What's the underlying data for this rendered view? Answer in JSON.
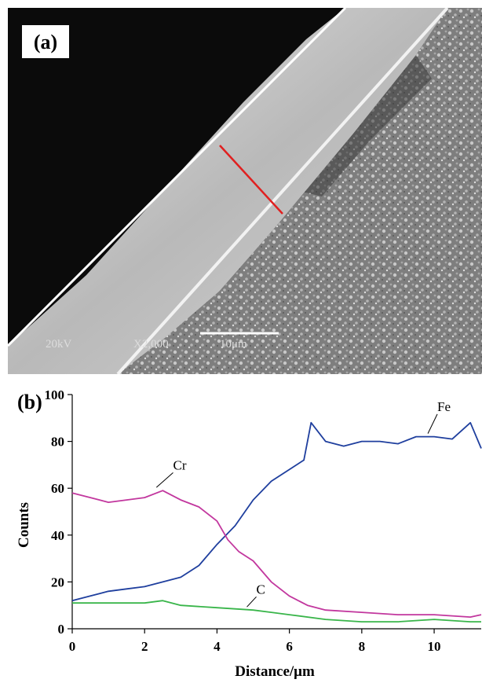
{
  "panel_a": {
    "label": "(a)",
    "sem_labels": {
      "voltage": "20kV",
      "magnification": "X2,000",
      "scale_bar": "10μm"
    }
  },
  "panel_b": {
    "label": "(b)"
  },
  "colors": {
    "Fe": "#1f3f9e",
    "Cr": "#c2379e",
    "C": "#39b54a",
    "profile_line": "#e02020"
  },
  "chart_data": {
    "type": "line",
    "xlabel": "Distance/μm",
    "ylabel": "Counts",
    "xlim": [
      0,
      11.3
    ],
    "ylim": [
      0,
      100
    ],
    "xticks": [
      0,
      2,
      4,
      6,
      8,
      10
    ],
    "yticks": [
      0,
      20,
      40,
      60,
      80,
      100
    ],
    "annotations": [
      {
        "text": "Fe",
        "series": "Fe",
        "x": 10.0,
        "y": 93
      },
      {
        "text": "Cr",
        "series": "Cr",
        "x": 2.7,
        "y": 68
      },
      {
        "text": "C",
        "series": "C",
        "x": 5.0,
        "y": 15
      }
    ],
    "series": [
      {
        "name": "Fe",
        "x": [
          0,
          0.5,
          1.0,
          1.5,
          2.0,
          2.5,
          3.0,
          3.5,
          4.0,
          4.5,
          5.0,
          5.5,
          6.0,
          6.4,
          6.6,
          6.8,
          7.0,
          7.5,
          8.0,
          8.5,
          9.0,
          9.5,
          10.0,
          10.5,
          11.0,
          11.3
        ],
        "y": [
          12,
          14,
          16,
          17,
          18,
          20,
          22,
          27,
          36,
          44,
          55,
          63,
          68,
          72,
          88,
          84,
          80,
          78,
          80,
          80,
          79,
          82,
          82,
          81,
          88,
          77
        ]
      },
      {
        "name": "Cr",
        "x": [
          0,
          0.5,
          1.0,
          1.5,
          2.0,
          2.5,
          3.0,
          3.5,
          4.0,
          4.3,
          4.6,
          5.0,
          5.5,
          6.0,
          6.5,
          7.0,
          8.0,
          9.0,
          10.0,
          11.0,
          11.3
        ],
        "y": [
          58,
          56,
          54,
          55,
          56,
          59,
          55,
          52,
          46,
          38,
          33,
          29,
          20,
          14,
          10,
          8,
          7,
          6,
          6,
          5,
          6
        ]
      },
      {
        "name": "C",
        "x": [
          0,
          1.0,
          2.0,
          2.5,
          3.0,
          4.0,
          5.0,
          5.5,
          6.0,
          7.0,
          8.0,
          9.0,
          10.0,
          11.0,
          11.3
        ],
        "y": [
          11,
          11,
          11,
          12,
          10,
          9,
          8,
          7,
          6,
          4,
          3,
          3,
          4,
          3,
          3
        ]
      }
    ]
  }
}
